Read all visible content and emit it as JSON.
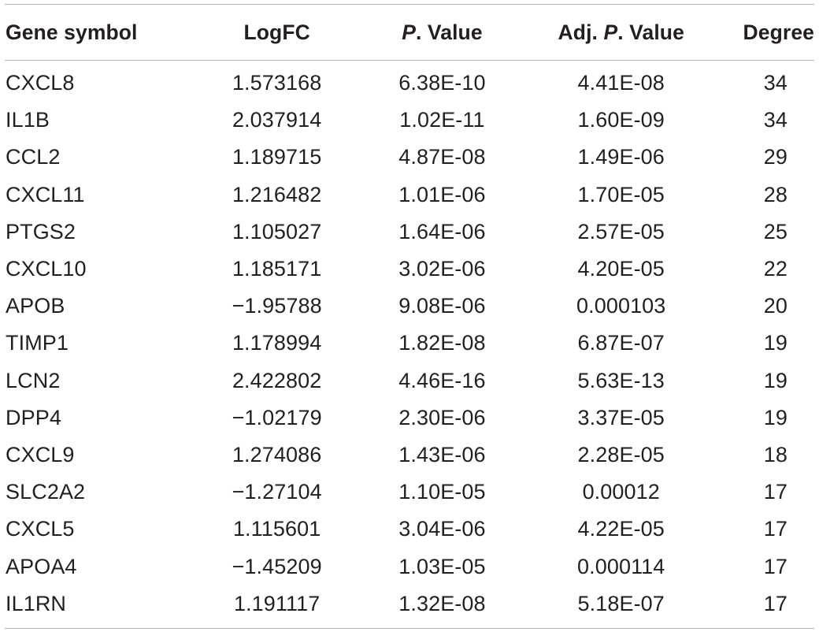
{
  "table": {
    "headers": {
      "gene_symbol": "Gene symbol",
      "logfc": "LogFC",
      "p_value_italic": "P",
      "p_value_rest": ". Value",
      "adj_prefix": "Adj. ",
      "adj_italic": "P",
      "adj_rest": ". Value",
      "degree": "Degree"
    },
    "rows": [
      {
        "gene": "CXCL8",
        "logfc": "1.573168",
        "p": "6.38E-10",
        "adj_p": "4.41E-08",
        "degree": "34"
      },
      {
        "gene": "IL1B",
        "logfc": "2.037914",
        "p": "1.02E-11",
        "adj_p": "1.60E-09",
        "degree": "34"
      },
      {
        "gene": "CCL2",
        "logfc": "1.189715",
        "p": "4.87E-08",
        "adj_p": "1.49E-06",
        "degree": "29"
      },
      {
        "gene": "CXCL11",
        "logfc": "1.216482",
        "p": "1.01E-06",
        "adj_p": "1.70E-05",
        "degree": "28"
      },
      {
        "gene": "PTGS2",
        "logfc": "1.105027",
        "p": "1.64E-06",
        "adj_p": "2.57E-05",
        "degree": "25"
      },
      {
        "gene": "CXCL10",
        "logfc": "1.185171",
        "p": "3.02E-06",
        "adj_p": "4.20E-05",
        "degree": "22"
      },
      {
        "gene": "APOB",
        "logfc": "−1.95788",
        "p": "9.08E-06",
        "adj_p": "0.000103",
        "degree": "20"
      },
      {
        "gene": "TIMP1",
        "logfc": "1.178994",
        "p": "1.82E-08",
        "adj_p": "6.87E-07",
        "degree": "19"
      },
      {
        "gene": "LCN2",
        "logfc": "2.422802",
        "p": "4.46E-16",
        "adj_p": "5.63E-13",
        "degree": "19"
      },
      {
        "gene": "DPP4",
        "logfc": "−1.02179",
        "p": "2.30E-06",
        "adj_p": "3.37E-05",
        "degree": "19"
      },
      {
        "gene": "CXCL9",
        "logfc": "1.274086",
        "p": "1.43E-06",
        "adj_p": "2.28E-05",
        "degree": "18"
      },
      {
        "gene": "SLC2A2",
        "logfc": "−1.27104",
        "p": "1.10E-05",
        "adj_p": "0.00012",
        "degree": "17"
      },
      {
        "gene": "CXCL5",
        "logfc": "1.115601",
        "p": "3.04E-06",
        "adj_p": "4.22E-05",
        "degree": "17"
      },
      {
        "gene": "APOA4",
        "logfc": "−1.45209",
        "p": "1.03E-05",
        "adj_p": "0.000114",
        "degree": "17"
      },
      {
        "gene": "IL1RN",
        "logfc": "1.191117",
        "p": "1.32E-08",
        "adj_p": "5.18E-07",
        "degree": "17"
      }
    ]
  }
}
